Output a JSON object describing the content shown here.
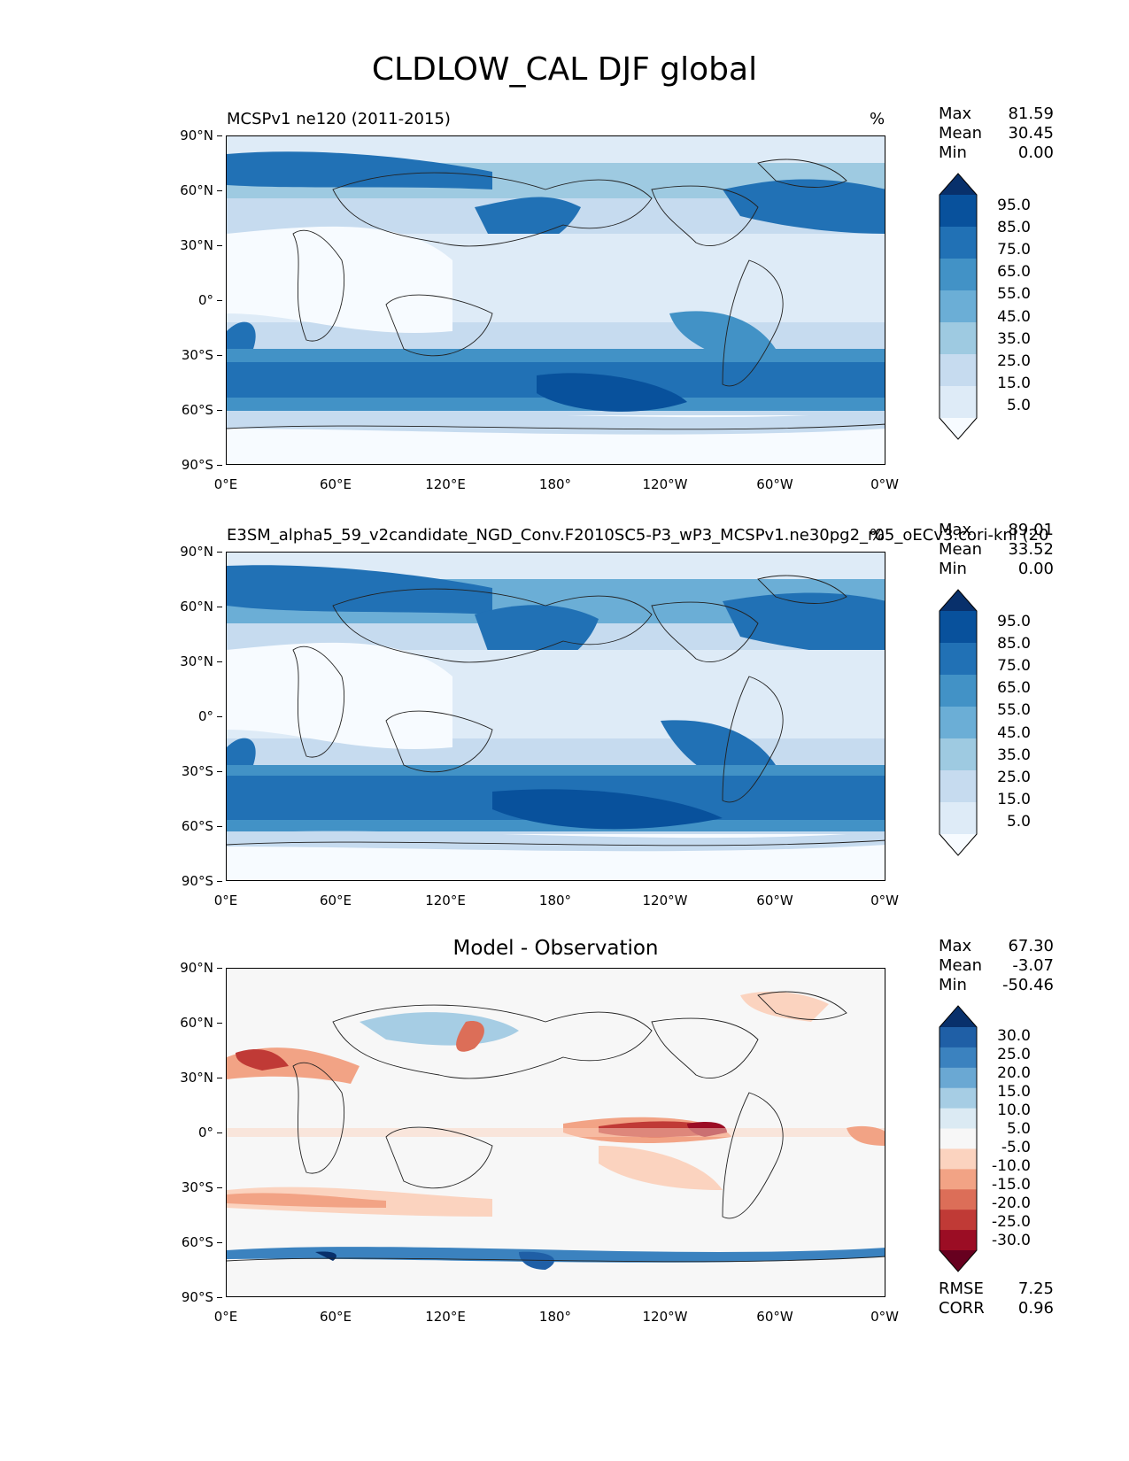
{
  "chart_data": {
    "title": "CLDLOW_CAL DJF global",
    "type": "heatmap",
    "panels": [
      {
        "id": "test",
        "title_left": "MCSPv1 ne120 (2011-2015)",
        "title_right": "%",
        "stats": {
          "max_label": "Max",
          "max": "81.59",
          "mean_label": "Mean",
          "mean": "30.45",
          "min_label": "Min",
          "min": "0.00"
        },
        "colorbar_levels": [
          "95.0",
          "85.0",
          "75.0",
          "65.0",
          "55.0",
          "45.0",
          "35.0",
          "25.0",
          "15.0",
          "5.0"
        ],
        "colorbar_colors": [
          "#08306b",
          "#08519c",
          "#2171b5",
          "#4292c6",
          "#6baed6",
          "#9ecae1",
          "#c6dbef",
          "#deebf7",
          "#f7fbff"
        ],
        "xticks": [
          "0°E",
          "60°E",
          "120°E",
          "180°",
          "120°W",
          "60°W",
          "0°W"
        ],
        "yticks": [
          "90°N",
          "60°N",
          "30°N",
          "0°",
          "30°S",
          "60°S",
          "90°S"
        ]
      },
      {
        "id": "reference",
        "title_left": "E3SM_alpha5_59_v2candidate_NGD_Conv.F2010SC5-P3_wP3_MCSPv1.ne30pg2_r05_oECv3.cori-knl (20",
        "title_right": "%",
        "stats": {
          "max_label": "Max",
          "max": "89.01",
          "mean_label": "Mean",
          "mean": "33.52",
          "min_label": "Min",
          "min": "0.00"
        },
        "colorbar_levels": [
          "95.0",
          "85.0",
          "75.0",
          "65.0",
          "55.0",
          "45.0",
          "35.0",
          "25.0",
          "15.0",
          "5.0"
        ],
        "colorbar_colors": [
          "#08306b",
          "#08519c",
          "#2171b5",
          "#4292c6",
          "#6baed6",
          "#9ecae1",
          "#c6dbef",
          "#deebf7",
          "#f7fbff"
        ],
        "xticks": [
          "0°E",
          "60°E",
          "120°E",
          "180°",
          "120°W",
          "60°W",
          "0°W"
        ],
        "yticks": [
          "90°N",
          "60°N",
          "30°N",
          "0°",
          "30°S",
          "60°S",
          "90°S"
        ]
      },
      {
        "id": "difference",
        "title_center": "Model - Observation",
        "stats": {
          "max_label": "Max",
          "max": "67.30",
          "mean_label": "Mean",
          "mean": "-3.07",
          "min_label": "Min",
          "min": "-50.46"
        },
        "colorbar_levels": [
          "30.0",
          "25.0",
          "20.0",
          "15.0",
          "10.0",
          "5.0",
          "-5.0",
          "-10.0",
          "-15.0",
          "-20.0",
          "-25.0",
          "-30.0"
        ],
        "colorbar_colors": [
          "#08306b",
          "#1f5fa6",
          "#3b82bf",
          "#6aa8d3",
          "#a6cde4",
          "#dbeaf3",
          "#f7f7f7",
          "#fbd3bf",
          "#f2a385",
          "#dc6e58",
          "#c03a36",
          "#9b0d24",
          "#67001f"
        ],
        "footer": {
          "rmse_label": "RMSE",
          "rmse": "7.25",
          "corr_label": "CORR",
          "corr": "0.96"
        },
        "xticks": [
          "0°E",
          "60°E",
          "120°E",
          "180°",
          "120°W",
          "60°W",
          "0°W"
        ],
        "yticks": [
          "90°N",
          "60°N",
          "30°N",
          "0°",
          "30°S",
          "60°S",
          "90°S"
        ]
      }
    ]
  }
}
